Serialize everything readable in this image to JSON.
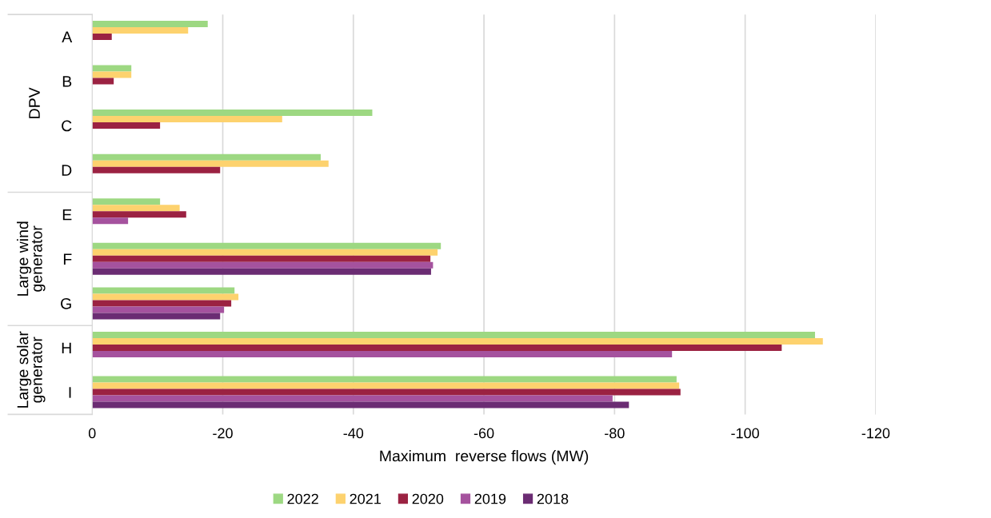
{
  "chart_data": {
    "type": "bar",
    "orientation": "horizontal",
    "xlabel": "Maximum  reverse flows (MW)",
    "categories": [
      "A",
      "B",
      "C",
      "D",
      "E",
      "F",
      "G",
      "H",
      "I"
    ],
    "series": [
      {
        "name": "2022",
        "color": "#9dd882",
        "values": [
          -17.7,
          -6.0,
          -42.9,
          -35.0,
          -10.4,
          -53.4,
          -21.8,
          -110.7,
          -89.5
        ]
      },
      {
        "name": "2021",
        "color": "#fdd26e",
        "values": [
          -14.7,
          -6.0,
          -29.1,
          -36.2,
          -13.4,
          -52.9,
          -22.4,
          -111.9,
          -89.9
        ]
      },
      {
        "name": "2020",
        "color": "#9b2242",
        "values": [
          -3.0,
          -3.3,
          -10.4,
          -19.6,
          -14.4,
          -51.8,
          -21.3,
          -105.6,
          -90.1
        ]
      },
      {
        "name": "2019",
        "color": "#a5529e",
        "values": [
          null,
          null,
          null,
          null,
          -5.5,
          -52.2,
          -20.2,
          -88.8,
          -79.7
        ]
      },
      {
        "name": "2018",
        "color": "#6b2c73",
        "values": [
          null,
          null,
          null,
          null,
          null,
          -51.9,
          -19.6,
          null,
          -82.2
        ]
      }
    ],
    "xlim": [
      0,
      -120
    ],
    "xticks": [
      0,
      -20,
      -40,
      -60,
      -80,
      -100,
      -120
    ],
    "grid": "x",
    "legend": "bottom",
    "annotations": [
      "DPV",
      "Large wind\ngenerator",
      "Large solar\ngenerator"
    ]
  }
}
